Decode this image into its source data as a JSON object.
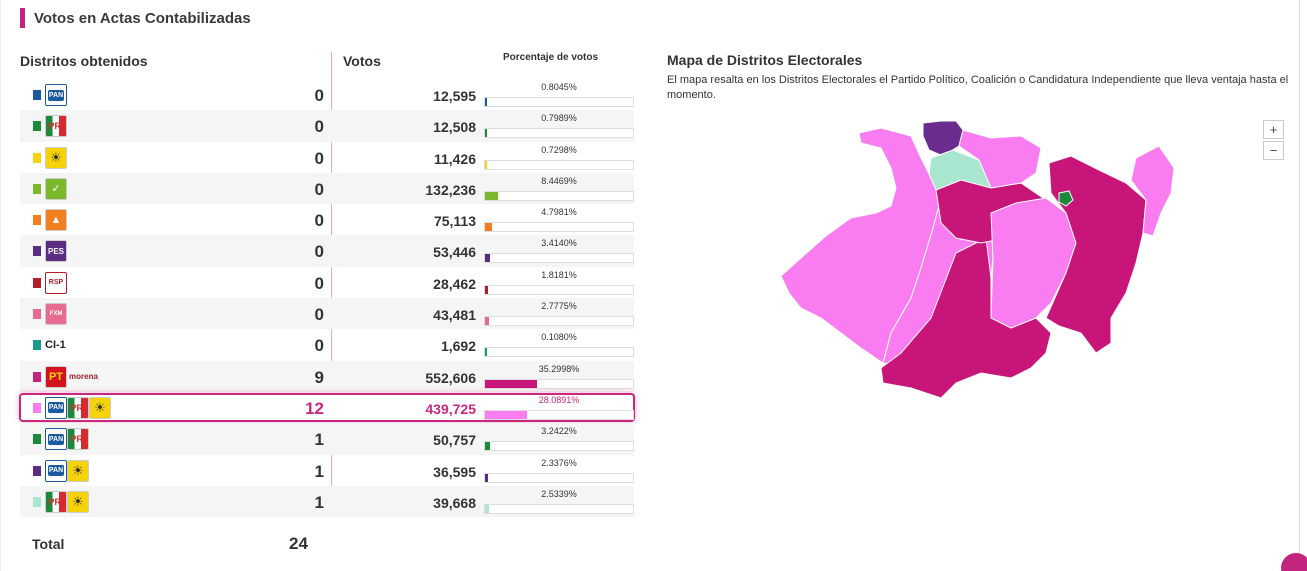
{
  "header": {
    "title": "Votos en Actas Contabilizadas"
  },
  "table": {
    "col_distritos": "Distritos obtenidos",
    "col_votos": "Votos",
    "col_porcentaje": "Porcentaje de votos",
    "rows": [
      {
        "logos": [
          [
            "pan",
            "PAN"
          ]
        ],
        "swatch": "#1b5a9e",
        "distritos": "0",
        "votos": "12,595",
        "pct_label": "0.8045%",
        "pct": 0.8045,
        "color": "#1b5a9e"
      },
      {
        "logos": [
          [
            "pri",
            "PRI"
          ]
        ],
        "swatch": "#1a8a3b",
        "distritos": "0",
        "votos": "12,508",
        "pct_label": "0.7989%",
        "pct": 0.7989,
        "color": "#1a8a3b"
      },
      {
        "logos": [
          [
            "prd",
            "☀"
          ]
        ],
        "swatch": "#f5d20a",
        "distritos": "0",
        "votos": "11,426",
        "pct_label": "0.7298%",
        "pct": 0.7298,
        "color": "#f5d20a"
      },
      {
        "logos": [
          [
            "verde",
            "✓"
          ]
        ],
        "swatch": "#7ab82c",
        "distritos": "0",
        "votos": "132,236",
        "pct_label": "8.4469%",
        "pct": 8.4469,
        "color": "#7ab82c"
      },
      {
        "logos": [
          [
            "mc",
            "▲"
          ]
        ],
        "swatch": "#f47f20",
        "distritos": "0",
        "votos": "75,113",
        "pct_label": "4.7981%",
        "pct": 4.7981,
        "color": "#f47f20"
      },
      {
        "logos": [
          [
            "pes",
            "PES"
          ]
        ],
        "swatch": "#5a2d82",
        "distritos": "0",
        "votos": "53,446",
        "pct_label": "3.4140%",
        "pct": 3.414,
        "color": "#5a2d82"
      },
      {
        "logos": [
          [
            "rsp",
            "RSP"
          ]
        ],
        "swatch": "#b21e2a",
        "distritos": "0",
        "votos": "28,462",
        "pct_label": "1.8181%",
        "pct": 1.8181,
        "color": "#b21e2a"
      },
      {
        "logos": [
          [
            "fxm",
            "FXM"
          ]
        ],
        "swatch": "#e86a91",
        "distritos": "0",
        "votos": "43,481",
        "pct_label": "2.7775%",
        "pct": 2.7775,
        "color": "#e86a91"
      },
      {
        "logos": [
          [
            "ci",
            "CI-1"
          ]
        ],
        "swatch": "#1a9a8a",
        "distritos": "0",
        "votos": "1,692",
        "pct_label": "0.1080%",
        "pct": 0.108,
        "color": "#1a9a8a"
      },
      {
        "logos": [
          [
            "pt",
            "PT"
          ],
          [
            "morena",
            "morena"
          ]
        ],
        "swatch": "#c2247f",
        "distritos": "9",
        "votos": "552,606",
        "pct_label": "35.2998%",
        "pct": 35.2998,
        "color": "#c8157a"
      },
      {
        "logos": [
          [
            "pan",
            "PAN"
          ],
          [
            "pri",
            "PRI"
          ],
          [
            "prd",
            "☀"
          ]
        ],
        "swatch": "#f97cf0",
        "distritos": "12",
        "votos": "439,725",
        "pct_label": "28.0891%",
        "pct": 28.0891,
        "color": "#f97cf0",
        "highlight": true
      },
      {
        "logos": [
          [
            "pan",
            "PAN"
          ],
          [
            "pri",
            "PRI"
          ]
        ],
        "swatch": "#1a8a3b",
        "distritos": "1",
        "votos": "50,757",
        "pct_label": "3.2422%",
        "pct": 3.2422,
        "color": "#1a8a3b"
      },
      {
        "logos": [
          [
            "pan",
            "PAN"
          ],
          [
            "prd",
            "☀"
          ]
        ],
        "swatch": "#5a2d82",
        "distritos": "1",
        "votos": "36,595",
        "pct_label": "2.3376%",
        "pct": 2.3376,
        "color": "#5a2d82"
      },
      {
        "logos": [
          [
            "pri",
            "PRI"
          ],
          [
            "prd",
            "☀"
          ]
        ],
        "swatch": "#a8e6cf",
        "distritos": "1",
        "votos": "39,668",
        "pct_label": "2.5339%",
        "pct": 2.5339,
        "color": "#a8e6cf"
      }
    ],
    "total_label": "Total",
    "total_value": "24"
  },
  "map": {
    "title": "Mapa de Distritos Electorales",
    "description": "El mapa resalta en los Distritos Electorales el Partido Político, Coalición o Candidatura Independiente que lleva ventaja hasta el momento.",
    "zoom_in": "+",
    "zoom_out": "−",
    "colors": {
      "coalition_pan_pri_prd": "#f97cf0",
      "pt_morena": "#c8157a",
      "pan_prd": "#6a2d8f",
      "pri_prd": "#a8e6cf",
      "pan_pri": "#1a8a3b"
    }
  }
}
